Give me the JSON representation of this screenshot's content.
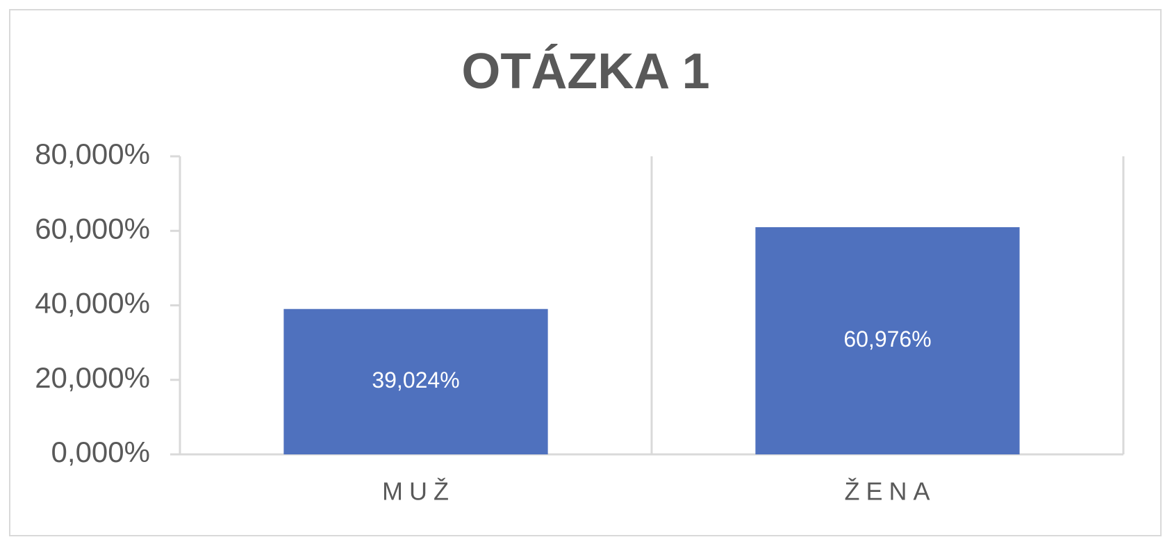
{
  "chart_data": {
    "type": "bar",
    "title": "OTÁZKA 1",
    "categories": [
      "MUŽ",
      "ŽENA"
    ],
    "values": [
      39.024,
      60.976
    ],
    "value_labels": [
      "39,024%",
      "60,976%"
    ],
    "color": "#4f71be",
    "ylim": [
      0,
      80
    ],
    "yticks": [
      {
        "value": 0,
        "label": "0,000%"
      },
      {
        "value": 20,
        "label": "20,000%"
      },
      {
        "value": 40,
        "label": "40,000%"
      },
      {
        "value": 60,
        "label": "60,000%"
      },
      {
        "value": 80,
        "label": "80,000%"
      }
    ]
  }
}
